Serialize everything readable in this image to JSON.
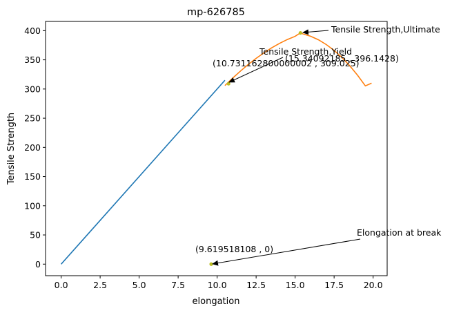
{
  "chart_data": {
    "type": "line",
    "title": "mp-626785",
    "xlabel": "elongation",
    "ylabel": "Tensile Strength",
    "xlim": [
      -1.0,
      20.9
    ],
    "ylim": [
      -19.8,
      415.8
    ],
    "grid": false,
    "xticks": [
      0.0,
      2.5,
      5.0,
      7.5,
      10.0,
      12.5,
      15.0,
      17.5,
      20.0
    ],
    "xtick_labels": [
      "0.0",
      "2.5",
      "5.0",
      "7.5",
      "10.0",
      "12.5",
      "15.0",
      "17.5",
      "20.0"
    ],
    "yticks": [
      0,
      50,
      100,
      150,
      200,
      250,
      300,
      350,
      400
    ],
    "ytick_labels": [
      "0",
      "50",
      "100",
      "150",
      "200",
      "250",
      "300",
      "350",
      "400"
    ],
    "series": [
      {
        "color": "#1f77b4",
        "x": [
          0.0,
          10.5
        ],
        "y": [
          0.0,
          315.0
        ]
      },
      {
        "color": "#ff7f0e",
        "x": [
          10.5,
          11.0,
          11.5,
          12.0,
          12.5,
          13.0,
          13.5,
          14.0,
          14.5,
          15.0,
          15.34,
          15.5,
          16.0,
          16.5,
          17.0,
          17.5,
          18.0,
          18.5,
          19.0,
          19.5,
          19.9
        ],
        "y": [
          306.0,
          318.7,
          330.8,
          342.1,
          352.5,
          362.0,
          370.6,
          378.2,
          384.8,
          390.2,
          396.1,
          394.5,
          390.4,
          384.3,
          376.2,
          366.1,
          354.0,
          339.8,
          323.6,
          305.4,
          310.0
        ]
      }
    ],
    "points": [
      {
        "x": 10.73116280000002,
        "y": 309.025,
        "color": "#bcbd22"
      },
      {
        "x": 15.34092185,
        "y": 396.1428,
        "color": "#bcbd22"
      },
      {
        "x": 9.619518108,
        "y": 0,
        "color": "#bcbd22"
      }
    ],
    "annotations": [
      {
        "label": "Tensile Strength,Ultimate",
        "value_text": "(15.34092185 , 396.1428)",
        "point_x": 15.34092185,
        "point_y": 396.1428
      },
      {
        "label": "Tensile Strength,Yield",
        "value_text": "(10.731162800000002 , 309.025)",
        "point_x": 10.73116280000002,
        "point_y": 309.025
      },
      {
        "label": "Elongation at break",
        "value_text": "(9.619518108 , 0)",
        "point_x": 9.619518108,
        "point_y": 0
      }
    ]
  }
}
